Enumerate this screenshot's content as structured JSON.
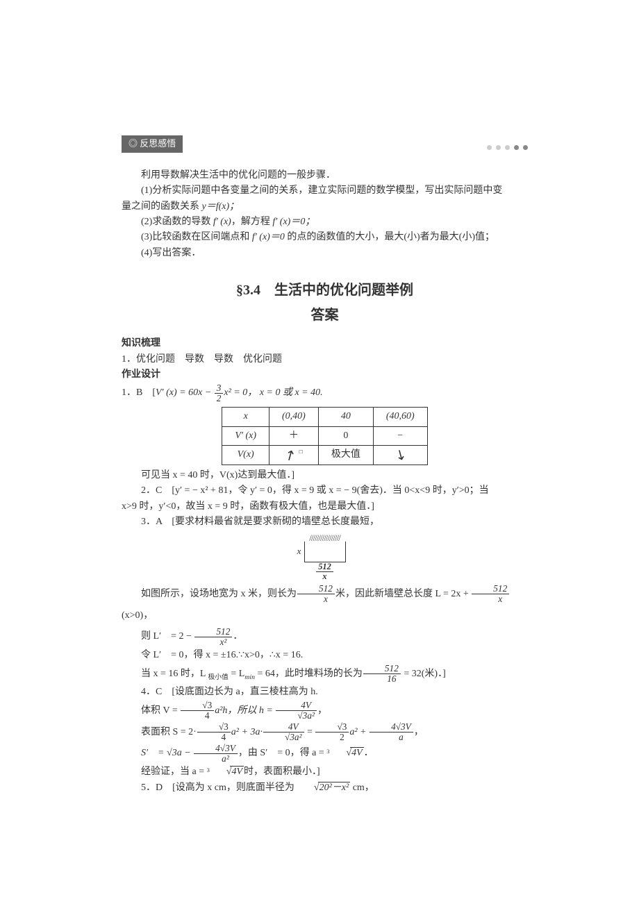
{
  "colors": {
    "text": "#333333",
    "header_bg": "#666666",
    "header_fg": "#ffffff",
    "border": "#333333",
    "dot_light": "#cccccc",
    "dot_dark": "#888888",
    "bg": "#ffffff"
  },
  "typography": {
    "body_pt": 14,
    "title_pt": 20,
    "line_height": 1.6
  },
  "section_header": "◎ 反思感悟",
  "intro": {
    "lead": "利用导数解决生活中的优化问题的一般步骤．",
    "s1_pre": "(1)分析实际问题中各变量之间的关系，建立实际问题的数学模型，写出实际问题中变",
    "s1_post": "量之间的函数关系 ",
    "s1_formula": "y＝f(x)；",
    "s2_a": "(2)求函数的导数 ",
    "s2_fp": "f′ (x)",
    "s2_b": "，解方程 ",
    "s2_fp0": "f′ (x)＝0；",
    "s3_a": "(3)比较函数在区间端点和 ",
    "s3_fp": "f′ (x)＝0",
    "s3_b": " 的点的函数值的大小，最大(小)者为最大(小)值；",
    "s4": "(4)写出答案．"
  },
  "title": {
    "main": "§3.4　生活中的优化问题举例",
    "sub": "答案"
  },
  "knowledge": {
    "heading": "知识梳理",
    "line": "1．优化问题　导数　导数　优化问题"
  },
  "homework": {
    "heading": "作业设计"
  },
  "q1": {
    "label": "1．B　[",
    "v_prime": "V′ (x) = 60x − ",
    "frac_num": "3",
    "frac_den": "2",
    "after_frac": "x² = 0， x = 0 或 x = 40.",
    "table": {
      "headers": [
        "x",
        "(0,40)",
        "40",
        "(40,60)"
      ],
      "row2_label": "V′ (x)",
      "row2": [
        "＋",
        "0",
        "−"
      ],
      "row3_label": "V(x)",
      "row3_max": "极大值",
      "small_square": "□"
    },
    "conclusion": "可见当 x = 40 时，V(x)达到最大值．]"
  },
  "q2": {
    "line_a": "2．C　[y′ = − x² + 81，令 y′ = 0，得 x = 9 或 x = − 9(舍去)．当 0<x<9 时，y′>0；当",
    "line_b": "x>9 时，y′<0，故当 x = 9 时，函数有极大值，也是最大值．]"
  },
  "q3": {
    "lead": "3．A　[要求材料最省就是要求新砌的墙壁总长度最短，",
    "diag_label_side": "x",
    "diag_label_bottom_num": "512",
    "diag_label_bottom_den": "x",
    "p1_a": "如图所示，设场地宽为 x 米，则长为",
    "p1_frac_num": "512",
    "p1_frac_den": "x",
    "p1_b": "米，因此新墙壁总长度 L = 2x + ",
    "p1_frac2_num": "512",
    "p1_frac2_den": "x",
    "p1_c": " (x>0)，",
    "p2_a": "则 L′　= 2 − ",
    "p2_frac_num": "512",
    "p2_frac_den": "x²",
    "p2_b": "．",
    "p3": "令 L′　= 0，得 x = ±16.∵x>0，∴x = 16.",
    "p4_a": "当 x = 16 时，L ",
    "p4_sub1": "极小值",
    "p4_b": " = L",
    "p4_sub2": "min",
    "p4_c": " = 64，此时堆料场的长为",
    "p4_frac_num": "512",
    "p4_frac_den": "16",
    "p4_d": " = 32(米)．]"
  },
  "q4": {
    "lead": "4．C　[设底面边长为 a，直三棱柱高为 h.",
    "p1_a": "体积 V = ",
    "p1_f1_num": "√3",
    "p1_f1_den": "4",
    "p1_b": "a²h，所以 h = ",
    "p1_f2_num": "4V",
    "p1_f2_den": "√3a²",
    "p1_c": "，",
    "p2_a": "表面积 S = 2·",
    "p2_f1_num": "√3",
    "p2_f1_den": "4",
    "p2_b": "a² + 3a·",
    "p2_f2_num": "4V",
    "p2_f2_den": "√3a²",
    "p2_c": " = ",
    "p2_f3_num": "√3",
    "p2_f3_den": "2",
    "p2_d": "a² + ",
    "p2_f4_num": "4√3V",
    "p2_f4_den": "a",
    "p2_e": "，",
    "p3_a": "S′　= √3a − ",
    "p3_f1_num": "4√3V",
    "p3_f1_den": "a²",
    "p3_b": "，由 S′　= 0，得 a = ",
    "p3_idx": "3",
    "p3_rad": "4V",
    "p3_c": "．",
    "p4_a": "经验证，当 a = ",
    "p4_idx": "3",
    "p4_rad": "4V",
    "p4_b": "时，表面积最小．]"
  },
  "q5": {
    "a": "5．D　[设高为 x cm，则底面半径为",
    "rad": "20²－x²",
    "b": " cm，"
  }
}
